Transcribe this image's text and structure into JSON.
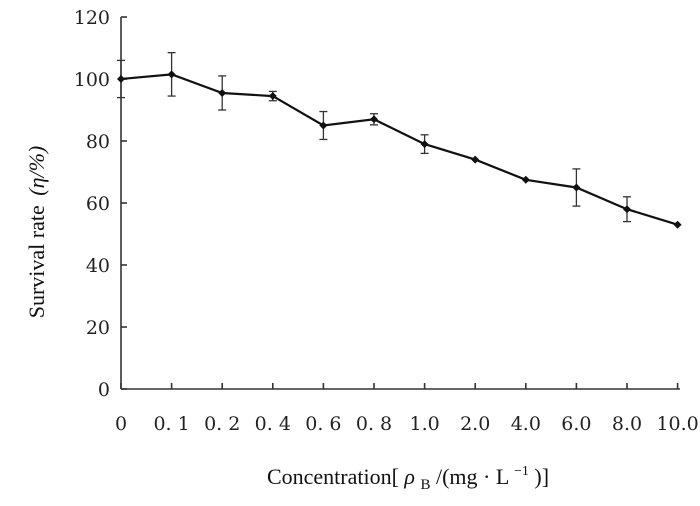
{
  "chart_data": {
    "type": "line",
    "categories": [
      "0",
      "0. 1",
      "0. 2",
      "0. 4",
      "0. 6",
      "0. 8",
      "1.0",
      "2.0",
      "4.0",
      "6.0",
      "8.0",
      "10.0"
    ],
    "series": [
      {
        "values": [
          100,
          101.5,
          95.5,
          94.5,
          85,
          87,
          79,
          74,
          67.5,
          65,
          58,
          53
        ],
        "errors": [
          6,
          7,
          5.5,
          1.5,
          4.5,
          1.8,
          3,
          0.5,
          0.7,
          6,
          4,
          0.5
        ]
      }
    ],
    "ylim": [
      0,
      120
    ],
    "yticks": [
      "0",
      "20",
      "40",
      "60",
      "80",
      "100",
      "120"
    ],
    "ylabel_main": "Survival rate",
    "ylabel_math": "(η/%)",
    "xlabel_prefix": "Concentration[",
    "xlabel_rho": "ρ",
    "xlabel_sub": "B",
    "xlabel_unit": "/(mg · L",
    "xlabel_sup": "−1",
    "xlabel_suffix": ")]",
    "grid": false
  }
}
